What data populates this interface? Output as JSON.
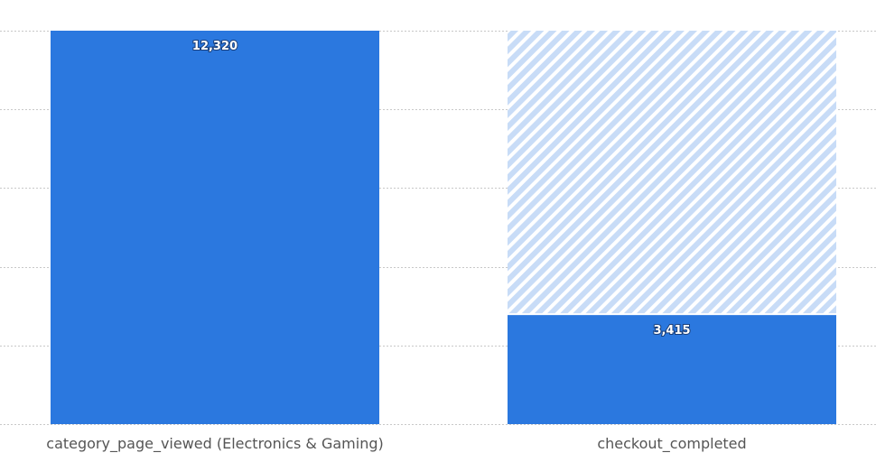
{
  "chart_data": {
    "type": "bar",
    "categories": [
      "category_page_viewed (Electronics & Gaming)",
      "checkout_completed"
    ],
    "values": [
      12320,
      3415
    ],
    "value_labels": [
      "12,320",
      "3,415"
    ],
    "dropoff_reference": 12320,
    "ylim": [
      0,
      12320
    ],
    "grid": true,
    "gridline_count": 5,
    "title": "",
    "xlabel": "",
    "ylabel": "",
    "colors": {
      "bar": "#2b78df",
      "dropoff_fill": "#c8dcf7",
      "dropoff_stripe": "#ffffff",
      "grid": "#c8c8c8",
      "axis_label": "#555555"
    }
  }
}
